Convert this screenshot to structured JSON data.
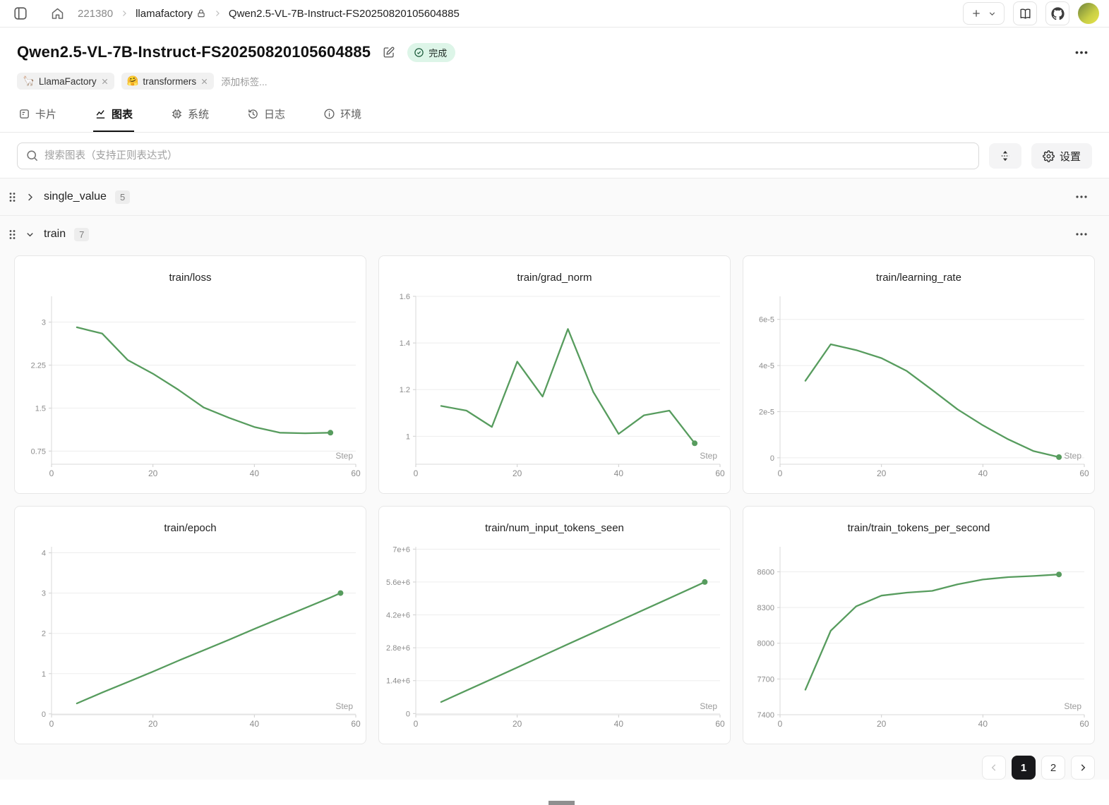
{
  "topbar": {
    "breadcrumb": {
      "project_id": "221380",
      "workspace": "llamafactory",
      "run_name": "Qwen2.5-VL-7B-Instruct-FS20250820105604885"
    }
  },
  "header": {
    "title": "Qwen2.5-VL-7B-Instruct-FS20250820105604885",
    "status_label": "完成",
    "tags": [
      {
        "emoji": "🦙",
        "label": "LlamaFactory"
      },
      {
        "emoji": "🤗",
        "label": "transformers"
      }
    ],
    "add_tag_label": "添加标签..."
  },
  "tabs": [
    {
      "label": "卡片"
    },
    {
      "label": "图表"
    },
    {
      "label": "系统"
    },
    {
      "label": "日志"
    },
    {
      "label": "环境"
    }
  ],
  "search": {
    "placeholder": "搜索图表（支持正则表达式）"
  },
  "toolbar": {
    "settings_label": "设置"
  },
  "sections": [
    {
      "name": "single_value",
      "count": "5",
      "collapsed": true
    },
    {
      "name": "train",
      "count": "7",
      "collapsed": false
    }
  ],
  "pagination": {
    "pages": [
      "1",
      "2"
    ],
    "active": "1"
  },
  "colors": {
    "line": "#579c5e",
    "accent": "#111111",
    "status_bg": "#ddf5e8"
  },
  "chart_data": [
    {
      "type": "line",
      "title": "train/loss",
      "xlabel": "Step",
      "x": [
        5,
        10,
        15,
        20,
        25,
        30,
        35,
        40,
        45,
        50,
        55
      ],
      "y": [
        2.91,
        2.8,
        2.34,
        2.1,
        1.82,
        1.51,
        1.33,
        1.17,
        1.07,
        1.06,
        1.07
      ],
      "xlim": [
        0,
        60
      ],
      "ylim": [
        0.52,
        3.45
      ],
      "xticks": [
        0,
        20,
        40,
        60
      ],
      "yticks": [
        {
          "v": 0.75,
          "label": "0.75"
        },
        {
          "v": 1.5,
          "label": "1.5"
        },
        {
          "v": 2.25,
          "label": "2.25"
        },
        {
          "v": 3,
          "label": "3"
        }
      ],
      "legend_position": "none",
      "grid": true,
      "end_marker": true
    },
    {
      "type": "line",
      "title": "train/grad_norm",
      "xlabel": "Step",
      "x": [
        5,
        10,
        15,
        20,
        25,
        30,
        35,
        40,
        45,
        50,
        55
      ],
      "y": [
        1.13,
        1.11,
        1.04,
        1.32,
        1.17,
        1.46,
        1.19,
        1.01,
        1.09,
        1.11,
        0.97
      ],
      "xlim": [
        0,
        60
      ],
      "ylim": [
        0.88,
        1.6
      ],
      "xticks": [
        0,
        20,
        40,
        60
      ],
      "yticks": [
        {
          "v": 1,
          "label": "1"
        },
        {
          "v": 1.2,
          "label": "1.2"
        },
        {
          "v": 1.4,
          "label": "1.4"
        },
        {
          "v": 1.6,
          "label": "1.6"
        }
      ],
      "legend_position": "none",
      "grid": true,
      "end_marker": true
    },
    {
      "type": "line",
      "title": "train/learning_rate",
      "xlabel": "Step",
      "x": [
        5,
        10,
        15,
        20,
        25,
        30,
        35,
        40,
        45,
        50,
        55
      ],
      "y": [
        3.34e-05,
        4.92e-05,
        4.67e-05,
        4.32e-05,
        3.76e-05,
        2.94e-05,
        2.1e-05,
        1.41e-05,
        8e-06,
        2.9e-06,
        3e-07
      ],
      "xlim": [
        0,
        60
      ],
      "ylim": [
        -2.8e-06,
        7e-05
      ],
      "xticks": [
        0,
        20,
        40,
        60
      ],
      "yticks": [
        {
          "v": 0,
          "label": "0"
        },
        {
          "v": 2e-05,
          "label": "2e-5"
        },
        {
          "v": 4e-05,
          "label": "4e-5"
        },
        {
          "v": 6e-05,
          "label": "6e-5"
        }
      ],
      "legend_position": "none",
      "grid": true,
      "end_marker": true
    },
    {
      "type": "line",
      "title": "train/epoch",
      "xlabel": "Step",
      "x": [
        5,
        10,
        15,
        20,
        25,
        30,
        35,
        40,
        45,
        50,
        55,
        57
      ],
      "y": [
        0.26,
        0.53,
        0.79,
        1.05,
        1.32,
        1.58,
        1.84,
        2.11,
        2.37,
        2.63,
        2.89,
        3.0
      ],
      "xlim": [
        0,
        60
      ],
      "ylim": [
        -0.02,
        4.15
      ],
      "xticks": [
        0,
        20,
        40,
        60
      ],
      "yticks": [
        {
          "v": 0,
          "label": "0"
        },
        {
          "v": 1,
          "label": "1"
        },
        {
          "v": 2,
          "label": "2"
        },
        {
          "v": 3,
          "label": "3"
        },
        {
          "v": 4,
          "label": "4"
        }
      ],
      "legend_position": "none",
      "grid": true,
      "end_marker": true
    },
    {
      "type": "line",
      "title": "train/num_input_tokens_seen",
      "xlabel": "Step",
      "x": [
        5,
        10,
        15,
        20,
        25,
        30,
        35,
        40,
        45,
        50,
        55,
        57
      ],
      "y": [
        490000,
        980000,
        1470000,
        1960000,
        2460000,
        2950000,
        3440000,
        3930000,
        4420000,
        4910000,
        5400000,
        5600000
      ],
      "xlim": [
        0,
        60
      ],
      "ylim": [
        -50000,
        7100000
      ],
      "xticks": [
        0,
        20,
        40,
        60
      ],
      "yticks": [
        {
          "v": 0,
          "label": "0"
        },
        {
          "v": 1400000,
          "label": "1.4e+6"
        },
        {
          "v": 2800000,
          "label": "2.8e+6"
        },
        {
          "v": 4200000,
          "label": "4.2e+6"
        },
        {
          "v": 5600000,
          "label": "5.6e+6"
        },
        {
          "v": 7000000,
          "label": "7e+6"
        }
      ],
      "legend_position": "none",
      "grid": true,
      "end_marker": true
    },
    {
      "type": "line",
      "title": "train/train_tokens_per_second",
      "xlabel": "Step",
      "x": [
        5,
        10,
        15,
        20,
        25,
        30,
        35,
        40,
        45,
        50,
        55
      ],
      "y": [
        7610,
        8105,
        8310,
        8400,
        8425,
        8440,
        8495,
        8535,
        8555,
        8565,
        8578
      ],
      "xlim": [
        0,
        60
      ],
      "ylim": [
        7400,
        8810
      ],
      "xticks": [
        0,
        20,
        40,
        60
      ],
      "yticks": [
        {
          "v": 7400,
          "label": "7400"
        },
        {
          "v": 7700,
          "label": "7700"
        },
        {
          "v": 8000,
          "label": "8000"
        },
        {
          "v": 8300,
          "label": "8300"
        },
        {
          "v": 8600,
          "label": "8600"
        }
      ],
      "legend_position": "none",
      "grid": true,
      "end_marker": true
    }
  ]
}
